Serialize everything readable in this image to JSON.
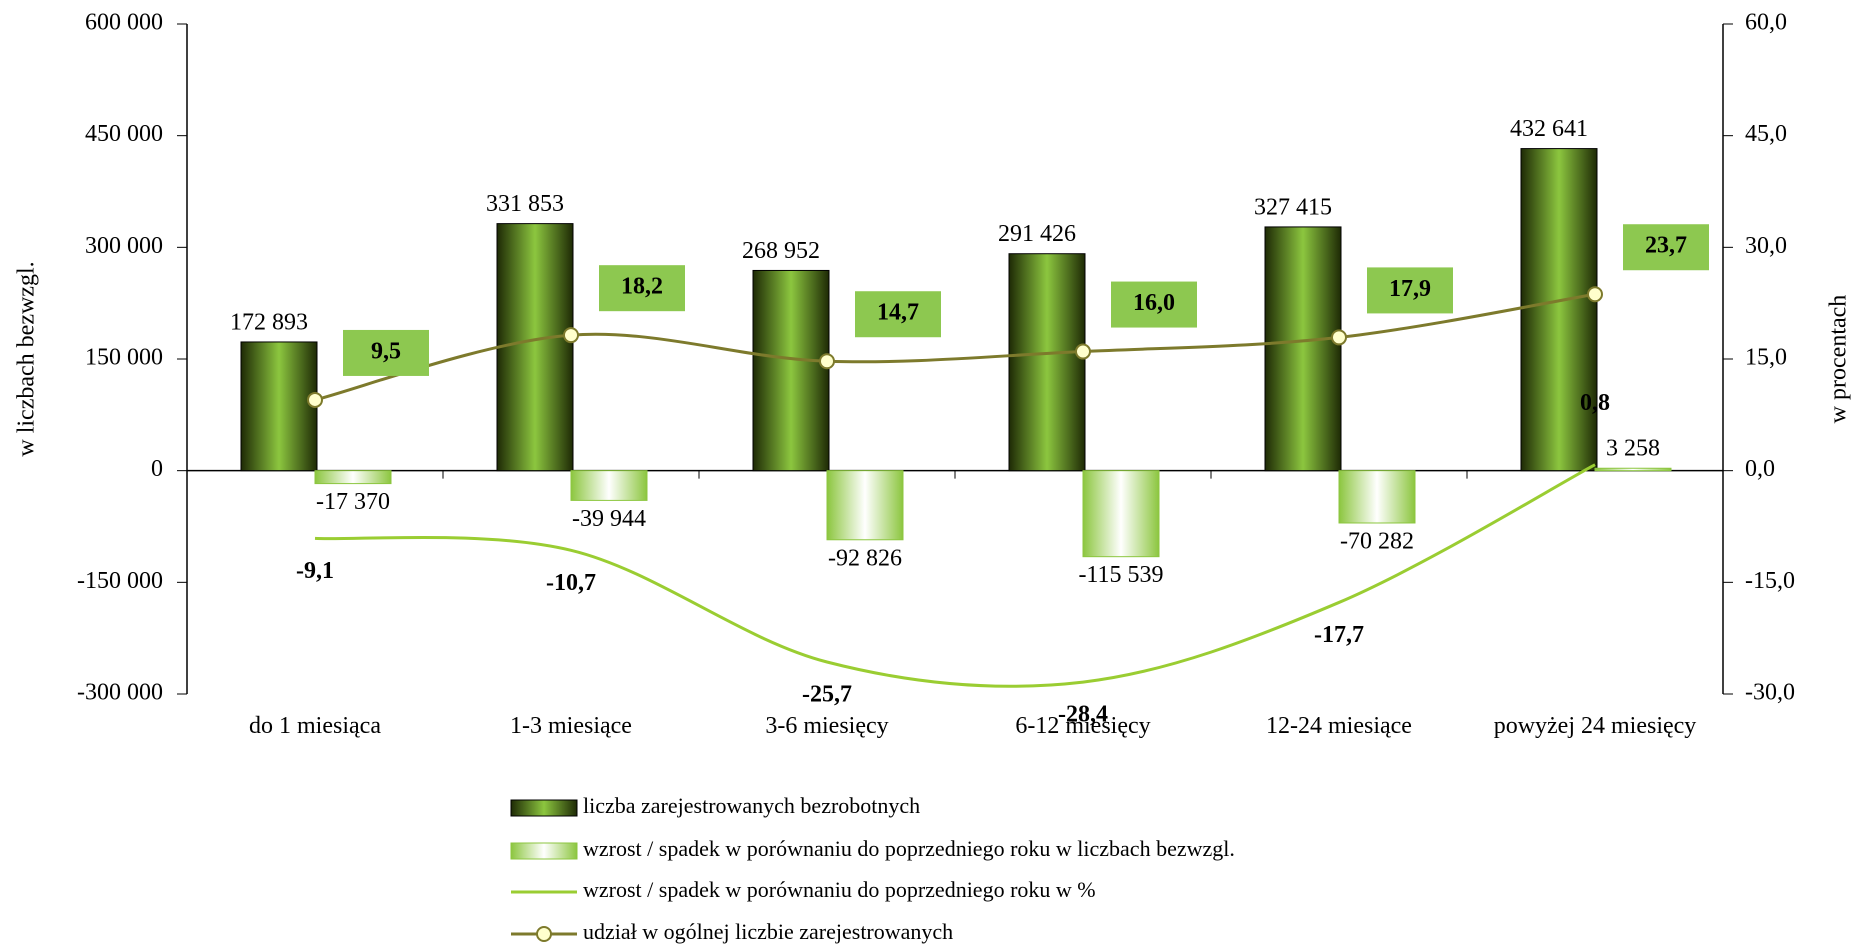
{
  "chart_data": {
    "type": "bar",
    "ylabel": "w liczbach bezwzgl.",
    "y2label": "w procentach",
    "categories": [
      "do 1 miesiąca",
      "1-3 miesiące",
      "3-6 miesięcy",
      "6-12 miesięcy",
      "12-24 miesiące",
      "powyżej 24 miesięcy"
    ],
    "ylim": [
      -300000,
      600000
    ],
    "yticks": [
      {
        "value": -300000,
        "label": "-300 000"
      },
      {
        "value": -150000,
        "label": "-150 000"
      },
      0,
      {
        "value": 150000,
        "label": "150 000"
      },
      {
        "value": 300000,
        "label": "300 000"
      },
      {
        "value": 450000,
        "label": "450 000"
      },
      {
        "value": 600000,
        "label": "600 000"
      }
    ],
    "y2lim": [
      -30,
      60
    ],
    "y2ticks": [
      {
        "value": -30,
        "label": "-30,0"
      },
      {
        "value": -15,
        "label": "-15,0"
      },
      {
        "value": 0,
        "label": "0,0"
      },
      {
        "value": 15,
        "label": "15,0"
      },
      {
        "value": 30,
        "label": "30,0"
      },
      {
        "value": 45,
        "label": "45,0"
      },
      {
        "value": 60,
        "label": "60,0"
      }
    ],
    "series": [
      {
        "name": "liczba zarejestrowanych bezrobotnych",
        "type": "bar",
        "color": "#7cb82f",
        "values": [
          172893,
          331853,
          268952,
          291426,
          327415,
          432641
        ],
        "value_labels": [
          "172 893",
          "331 853",
          "268 952",
          "291 426",
          "327 415",
          "432 641"
        ]
      },
      {
        "name": "wzrost / spadek w porównaniu do poprzedniego roku w liczbach bezwzgl.",
        "type": "bar",
        "color": "#8cc63f",
        "values": [
          -17370,
          -39944,
          -92826,
          -115539,
          -70282,
          3258
        ],
        "value_labels": [
          "-17 370",
          "-39 944",
          "-92 826",
          "-115 539",
          "-70 282",
          "3 258"
        ]
      },
      {
        "name": "wzrost / spadek w porównaniu do poprzedniego roku w %",
        "type": "line",
        "axis": "y2",
        "color": "#9acd32",
        "values": [
          -9.1,
          -10.7,
          -25.7,
          -28.4,
          -17.7,
          0.8
        ],
        "value_labels": [
          "-9,1",
          "-10,7",
          "-25,7",
          "-28,4",
          "-17,7",
          "0,8"
        ]
      },
      {
        "name": "udział w ogólnej liczbie zarejestrowanych",
        "type": "line",
        "axis": "y2",
        "color": "#7d7a2c",
        "marker": true,
        "values": [
          9.5,
          18.2,
          14.7,
          16.0,
          17.9,
          23.7
        ],
        "value_labels": [
          "9,5",
          "18,2",
          "14,7",
          "16,0",
          "17,9",
          "23,7"
        ]
      }
    ]
  }
}
